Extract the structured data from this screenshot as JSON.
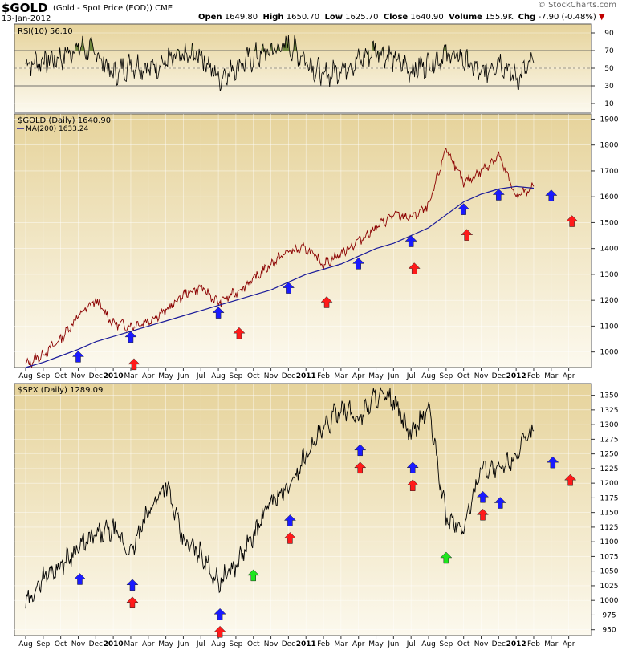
{
  "header": {
    "ticker": "$GOLD",
    "name": "(Gold - Spot Price (EOD))",
    "exchange": "CME",
    "date": "13-Jan-2012",
    "open_label": "Open",
    "open": "1649.80",
    "high_label": "High",
    "high": "1650.70",
    "low_label": "Low",
    "low": "1625.70",
    "close_label": "Close",
    "close": "1640.90",
    "volume_label": "Volume",
    "volume": "155.9K",
    "chg_label": "Chg",
    "chg": "-7.90 (-0.48%)",
    "brand": "© StockCharts.com"
  },
  "colors": {
    "up_arrow": "#1a1aff",
    "down_arrow": "#ff1a1a",
    "green_arrow": "#1ee61e",
    "ma_line": "#1a1a99",
    "gold_line": "#8b0000",
    "rsi_fill": "#5a7a2a",
    "panel_bg_top": "#e9d9a8",
    "panel_bg_bottom": "#fbf7ea"
  },
  "chart_data": [
    {
      "type": "line",
      "title": "RSI(10) 56.10",
      "legend": "RSI(10) 56.10",
      "ylim": [
        0,
        100
      ],
      "yticks": [
        10,
        30,
        50,
        70,
        90
      ],
      "x": [
        "2009-08",
        "2009-09",
        "2009-10",
        "2009-11",
        "2009-12",
        "2010-01",
        "2010-02",
        "2010-03",
        "2010-04",
        "2010-05",
        "2010-06",
        "2010-07",
        "2010-08",
        "2010-09",
        "2010-10",
        "2010-11",
        "2010-12",
        "2011-01",
        "2011-02",
        "2011-03",
        "2011-04",
        "2011-05",
        "2011-06",
        "2011-07",
        "2011-08",
        "2011-09",
        "2011-10",
        "2011-11",
        "2011-12",
        "2012-01"
      ],
      "values": [
        55,
        58,
        62,
        74,
        68,
        42,
        55,
        50,
        58,
        62,
        66,
        38,
        52,
        62,
        70,
        76,
        60,
        40,
        50,
        58,
        72,
        60,
        48,
        55,
        66,
        60,
        42,
        60,
        38,
        56
      ]
    },
    {
      "type": "line",
      "title": "$GOLD (Daily) 1640.90",
      "legend": [
        "$GOLD (Daily) 1640.90",
        "MA(200) 1633.24"
      ],
      "ylim": [
        940,
        1920
      ],
      "yticks": [
        1000,
        1100,
        1200,
        1300,
        1400,
        1500,
        1600,
        1700,
        1800,
        1900
      ],
      "xticks": [
        "Aug",
        "Sep",
        "Oct",
        "Nov",
        "Dec",
        "2010",
        "Mar",
        "Apr",
        "May",
        "Jun",
        "Jul",
        "Aug",
        "Sep",
        "Oct",
        "Nov",
        "Dec",
        "2011",
        "Feb",
        "Mar",
        "Apr",
        "May",
        "Jun",
        "Jul",
        "Aug",
        "Sep",
        "Oct",
        "Nov",
        "Dec",
        "2012",
        "Feb",
        "Mar",
        "Apr"
      ],
      "x": [
        "2009-08",
        "2009-09",
        "2009-10",
        "2009-11",
        "2009-12",
        "2010-01",
        "2010-02",
        "2010-03",
        "2010-04",
        "2010-05",
        "2010-06",
        "2010-07",
        "2010-08",
        "2010-09",
        "2010-10",
        "2010-11",
        "2010-12",
        "2011-01",
        "2011-02",
        "2011-03",
        "2011-04",
        "2011-05",
        "2011-06",
        "2011-07",
        "2011-08",
        "2011-09",
        "2011-10",
        "2011-11",
        "2011-12",
        "2012-01"
      ],
      "series": [
        {
          "name": "$GOLD (Daily) 1640.90",
          "values": [
            950,
            990,
            1050,
            1140,
            1200,
            1110,
            1100,
            1120,
            1160,
            1220,
            1250,
            1190,
            1230,
            1280,
            1340,
            1390,
            1400,
            1340,
            1380,
            1430,
            1480,
            1530,
            1520,
            1560,
            1790,
            1650,
            1700,
            1760,
            1600,
            1640
          ]
        },
        {
          "name": "MA(200) 1633.24",
          "values": [
            940,
            960,
            985,
            1010,
            1040,
            1060,
            1080,
            1100,
            1120,
            1140,
            1160,
            1180,
            1200,
            1220,
            1240,
            1270,
            1300,
            1320,
            1340,
            1370,
            1400,
            1420,
            1450,
            1480,
            1530,
            1580,
            1610,
            1630,
            1640,
            1633
          ]
        }
      ],
      "annotations": {
        "up_arrows_months": [
          "2009-11",
          "2010-02",
          "2010-07",
          "2010-11",
          "2011-03",
          "2011-06",
          "2011-09",
          "2011-11",
          "2012-02"
        ],
        "down_arrows_months": [
          "2010-02",
          "2010-08",
          "2011-01",
          "2011-06",
          "2011-09",
          "2012-03"
        ]
      }
    },
    {
      "type": "line",
      "title": "$SPX (Daily) 1289.09",
      "legend": "$SPX (Daily) 1289.09",
      "ylim": [
        940,
        1370
      ],
      "yticks": [
        950,
        975,
        1000,
        1025,
        1050,
        1075,
        1100,
        1125,
        1150,
        1175,
        1200,
        1225,
        1250,
        1275,
        1300,
        1325,
        1350
      ],
      "xticks": [
        "Aug",
        "Sep",
        "Oct",
        "Nov",
        "Dec",
        "2010",
        "Mar",
        "Apr",
        "May",
        "Jun",
        "Jul",
        "Aug",
        "Sep",
        "Oct",
        "Nov",
        "Dec",
        "2011",
        "Feb",
        "Mar",
        "Apr",
        "May",
        "Jun",
        "Jul",
        "Aug",
        "Sep",
        "Oct",
        "Nov",
        "Dec",
        "2012",
        "Feb",
        "Mar",
        "Apr"
      ],
      "x": [
        "2009-08",
        "2009-09",
        "2009-10",
        "2009-11",
        "2009-12",
        "2010-01",
        "2010-02",
        "2010-03",
        "2010-04",
        "2010-05",
        "2010-06",
        "2010-07",
        "2010-08",
        "2010-09",
        "2010-10",
        "2010-11",
        "2010-12",
        "2011-01",
        "2011-02",
        "2011-03",
        "2011-04",
        "2011-05",
        "2011-06",
        "2011-07",
        "2011-08",
        "2011-09",
        "2011-10",
        "2011-11",
        "2011-12",
        "2012-01"
      ],
      "values": [
        990,
        1040,
        1060,
        1090,
        1110,
        1120,
        1080,
        1150,
        1200,
        1100,
        1080,
        1030,
        1060,
        1110,
        1170,
        1190,
        1250,
        1290,
        1330,
        1310,
        1350,
        1340,
        1280,
        1330,
        1140,
        1120,
        1230,
        1220,
        1250,
        1289
      ],
      "annotations": {
        "up_arrows_months": [
          "2009-11",
          "2010-02",
          "2010-07",
          "2010-11",
          "2011-03",
          "2011-06",
          "2011-10",
          "2011-11",
          "2012-02"
        ],
        "down_arrows_months": [
          "2010-02",
          "2010-07",
          "2010-11",
          "2011-03",
          "2011-06",
          "2011-10",
          "2012-03"
        ],
        "green_arrows_months": [
          "2010-09",
          "2011-08"
        ]
      }
    }
  ]
}
